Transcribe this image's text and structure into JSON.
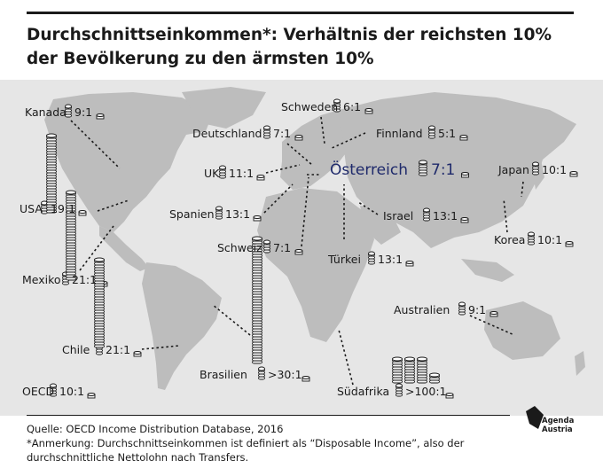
{
  "header": {
    "title_line1": "Durchschnittseinkommen*: Verhältnis der reichsten 10%",
    "title_line2": "der Bevölkerung zu den ärmsten 10%"
  },
  "chart_data": {
    "type": "map",
    "title": "Durchschnittseinkommen*: Verhältnis der reichsten 10% der Bevölkerung zu den ärmsten 10%",
    "unit": "Verhältnis reichste 10% : ärmste 10%",
    "highlight": "Österreich",
    "colors": {
      "map": "#bdbdbd",
      "background": "#e6e6e6",
      "highlight_text": "#1f2a6b",
      "coins": "#1a1a1a"
    },
    "countries": [
      {
        "name": "Kanada",
        "ratio_label": "9:1",
        "value": 9
      },
      {
        "name": "USA",
        "ratio_label": "19:1",
        "value": 19
      },
      {
        "name": "Mexiko",
        "ratio_label": "21:1",
        "value": 21
      },
      {
        "name": "Chile",
        "ratio_label": "21:1",
        "value": 21
      },
      {
        "name": "Brasilien",
        "ratio_label": ">30:1",
        "value": 30
      },
      {
        "name": "OECD",
        "ratio_label": "10:1",
        "value": 10
      },
      {
        "name": "Schweden",
        "ratio_label": "6:1",
        "value": 6
      },
      {
        "name": "Deutschland",
        "ratio_label": "7:1",
        "value": 7
      },
      {
        "name": "Finnland",
        "ratio_label": "5:1",
        "value": 5
      },
      {
        "name": "UK",
        "ratio_label": "11:1",
        "value": 11
      },
      {
        "name": "Österreich",
        "ratio_label": "7:1",
        "value": 7
      },
      {
        "name": "Spanien",
        "ratio_label": "13:1",
        "value": 13
      },
      {
        "name": "Israel",
        "ratio_label": "13:1",
        "value": 13
      },
      {
        "name": "Schweiz",
        "ratio_label": "7:1",
        "value": 7
      },
      {
        "name": "Türkei",
        "ratio_label": "13:1",
        "value": 13
      },
      {
        "name": "Japan",
        "ratio_label": "10:1",
        "value": 10
      },
      {
        "name": "Korea",
        "ratio_label": "10:1",
        "value": 10
      },
      {
        "name": "Australien",
        "ratio_label": "9:1",
        "value": 9
      },
      {
        "name": "Südafrika",
        "ratio_label": ">100:1",
        "value": 100
      }
    ]
  },
  "footer": {
    "source": "Quelle: OECD Income Distribution Database, 2016",
    "note_line1": "*Anmerkung: Durchschnittseinkommen ist definiert als “Disposable Income”, also der",
    "note_line2": "durchschnittliche Nettolohn nach Transfers.",
    "logo_line1": "Agenda",
    "logo_line2": "Austria"
  }
}
